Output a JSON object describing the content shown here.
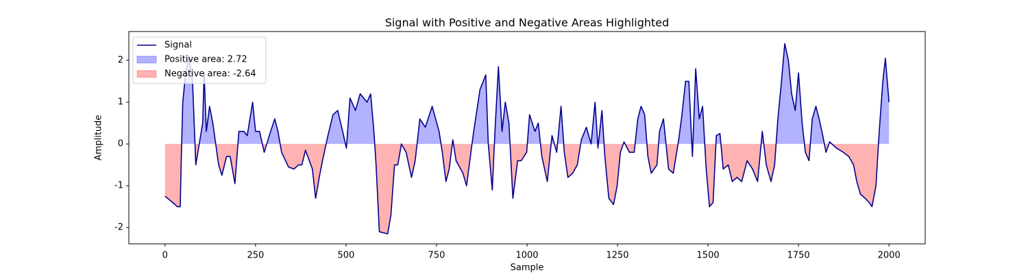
{
  "chart_data": {
    "type": "line",
    "title": "Signal with Positive and Negative Areas Highlighted",
    "xlabel": "Sample",
    "ylabel": "Amplitude",
    "xlim": [
      -100,
      2100
    ],
    "xticks": [
      0,
      250,
      500,
      750,
      1000,
      1250,
      1500,
      1750,
      2000
    ],
    "ylim": [
      -2.39,
      2.69
    ],
    "yticks": [
      -2,
      -1,
      0,
      1,
      2
    ],
    "legend": "upper left",
    "x": [
      0,
      21,
      34,
      42,
      45,
      49,
      57,
      66,
      76,
      85,
      104,
      108,
      114,
      123,
      132,
      148,
      157,
      170,
      180,
      193,
      204,
      218,
      227,
      242,
      250,
      261,
      274,
      288,
      303,
      312,
      322,
      341,
      356,
      369,
      378,
      388,
      407,
      416,
      426,
      435,
      450,
      464,
      477,
      488,
      501,
      511,
      526,
      539,
      558,
      568,
      577,
      583,
      592,
      615,
      624,
      634,
      643,
      653,
      666,
      681,
      691,
      704,
      719,
      738,
      757,
      766,
      776,
      785,
      795,
      804,
      823,
      833,
      851,
      870,
      886,
      893,
      904,
      912,
      921,
      931,
      940,
      950,
      961,
      974,
      984,
      999,
      1007,
      1022,
      1031,
      1041,
      1056,
      1069,
      1082,
      1094,
      1103,
      1113,
      1126,
      1139,
      1150,
      1164,
      1177,
      1188,
      1196,
      1207,
      1215,
      1226,
      1239,
      1249,
      1258,
      1268,
      1283,
      1296,
      1306,
      1315,
      1325,
      1334,
      1343,
      1359,
      1366,
      1377,
      1391,
      1404,
      1419,
      1428,
      1438,
      1447,
      1457,
      1466,
      1476,
      1485,
      1495,
      1504,
      1514,
      1523,
      1533,
      1542,
      1556,
      1567,
      1580,
      1593,
      1608,
      1623,
      1637,
      1650,
      1661,
      1674,
      1684,
      1693,
      1703,
      1712,
      1722,
      1731,
      1741,
      1750,
      1760,
      1769,
      1779,
      1788,
      1798,
      1807,
      1817,
      1826,
      1836,
      1855,
      1874,
      1889,
      1902,
      1911,
      1921,
      1934,
      1945,
      1953,
      1964,
      1973,
      1983,
      1990,
      2000
    ],
    "series": [
      {
        "name": "Signal",
        "color": "#00008b",
        "values": [
          -1.25,
          -1.4,
          -1.5,
          -1.5,
          -0.3,
          1.0,
          1.7,
          2.1,
          1.5,
          -0.5,
          0.5,
          1.7,
          0.3,
          0.9,
          0.5,
          -0.5,
          -0.75,
          -0.3,
          -0.3,
          -0.95,
          0.3,
          0.3,
          0.2,
          1.0,
          0.3,
          0.3,
          -0.2,
          0.2,
          0.6,
          0.3,
          -0.2,
          -0.55,
          -0.6,
          -0.5,
          -0.5,
          -0.15,
          -0.6,
          -1.3,
          -0.8,
          -0.4,
          0.2,
          0.7,
          0.8,
          0.4,
          -0.1,
          1.1,
          0.8,
          1.2,
          1.0,
          1.2,
          0.3,
          -0.5,
          -2.1,
          -2.15,
          -1.7,
          -0.5,
          -0.5,
          0.0,
          -0.2,
          -0.8,
          -0.4,
          0.6,
          0.4,
          0.9,
          0.3,
          -0.2,
          -0.9,
          -0.6,
          0.1,
          -0.4,
          -0.7,
          -1.0,
          0.2,
          1.3,
          1.65,
          0.0,
          -1.1,
          0.4,
          1.85,
          0.3,
          1.0,
          0.5,
          -1.3,
          -0.4,
          -0.4,
          -0.2,
          0.7,
          0.3,
          0.5,
          -0.3,
          -0.9,
          0.2,
          -0.2,
          0.9,
          -0.2,
          -0.8,
          -0.7,
          -0.5,
          0.1,
          0.4,
          0.0,
          1.0,
          -0.1,
          0.8,
          -0.3,
          -1.3,
          -1.45,
          -1.0,
          -0.2,
          0.05,
          -0.2,
          -0.2,
          0.6,
          0.9,
          0.7,
          -0.3,
          -0.7,
          -0.5,
          0.3,
          0.6,
          -0.6,
          -0.7,
          0.1,
          0.7,
          1.5,
          1.5,
          -0.3,
          1.8,
          0.6,
          0.9,
          -0.6,
          -1.5,
          -1.4,
          0.2,
          0.25,
          -0.6,
          -0.5,
          -0.9,
          -0.8,
          -0.9,
          -0.4,
          -0.6,
          -0.9,
          0.3,
          -0.5,
          -0.9,
          -0.5,
          0.6,
          1.5,
          2.4,
          2.0,
          1.2,
          0.8,
          1.7,
          0.5,
          -0.2,
          -0.4,
          0.6,
          0.9,
          0.6,
          0.2,
          -0.2,
          0.05,
          -0.1,
          -0.2,
          -0.3,
          -0.5,
          -0.9,
          -1.2,
          -1.3,
          -1.4,
          -1.5,
          -1.0,
          0.3,
          1.5,
          2.05,
          1.0
        ]
      }
    ],
    "fills": [
      {
        "name": "Positive area: 2.72",
        "color": "#0000ff",
        "side": "positive"
      },
      {
        "name": "Negative area: -2.64",
        "color": "#ff0000",
        "side": "negative"
      }
    ]
  }
}
